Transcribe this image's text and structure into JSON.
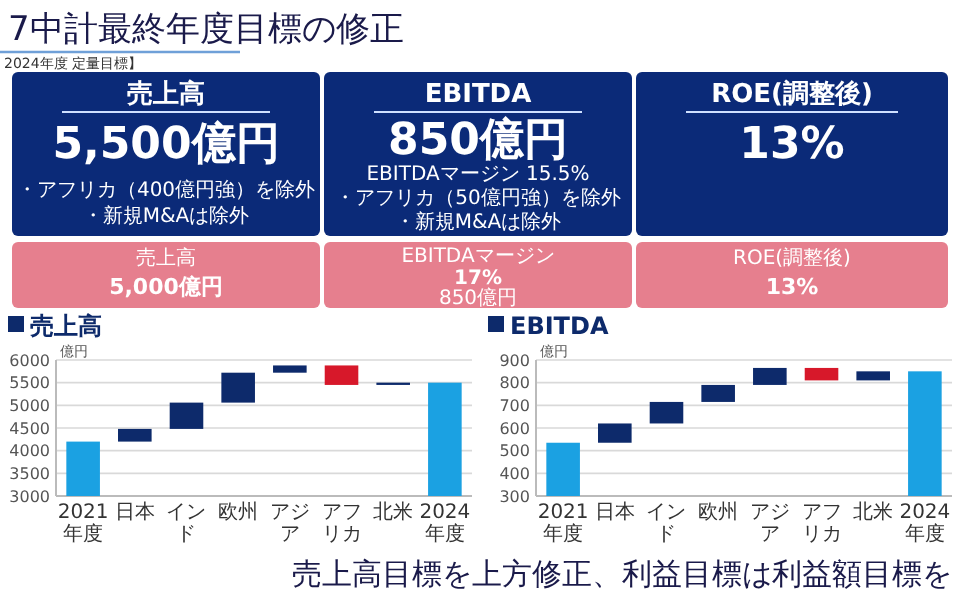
{
  "chart_data": [
    {
      "type": "other",
      "title": "7中計最終年度目標の修正",
      "subtitle": "2024年度 定量目標】",
      "annotations": [
        "売上高",
        "5,500億円",
        "・アフリカ（400億円強）を除外",
        "・新規M&Aは除外",
        "EBITDA",
        "850億円",
        "EBITDAマージン 15.5%",
        "・アフリカ（50億円強）を除外",
        "・新規M&Aは除外",
        "ROE(調整後)",
        "13%",
        "売上高",
        "5,000億円",
        "EBITDAマージン",
        "17%",
        "850億円",
        "ROE(調整後)",
        "13%",
        "売上高目標を上方修正、利益目標は利益額目標を"
      ]
    },
    {
      "type": "bar",
      "title": "売上高",
      "ylabel": "億円",
      "categories": [
        "2021年度",
        "日本",
        "インド",
        "欧州",
        "アジア",
        "アフリカ",
        "北米",
        "2024年度"
      ],
      "values": [
        4200,
        280,
        580,
        660,
        160,
        -430,
        50,
        5500
      ],
      "base": [
        null,
        4200,
        4480,
        5060,
        5720,
        5880,
        5450,
        null
      ],
      "colors": [
        "#1ba1e2",
        "#0d2a6b",
        "#0d2a6b",
        "#0d2a6b",
        "#0d2a6b",
        "#d7182a",
        "#0d2a6b",
        "#1ba1e2"
      ],
      "ylim": [
        3000,
        6000
      ],
      "yticks": [
        3000,
        3500,
        4000,
        4500,
        5000,
        5500,
        6000
      ],
      "grid": "y"
    },
    {
      "type": "bar",
      "title": "EBITDA",
      "ylabel": "億円",
      "categories": [
        "2021年度",
        "日本",
        "インド",
        "欧州",
        "アジア",
        "アフリカ",
        "北米",
        "2024年度"
      ],
      "values": [
        535,
        85,
        95,
        75,
        75,
        -55,
        40,
        850
      ],
      "base": [
        null,
        535,
        620,
        715,
        790,
        865,
        810,
        null
      ],
      "colors": [
        "#1ba1e2",
        "#0d2a6b",
        "#0d2a6b",
        "#0d2a6b",
        "#0d2a6b",
        "#d7182a",
        "#0d2a6b",
        "#1ba1e2"
      ],
      "ylim": [
        300,
        900
      ],
      "yticks": [
        300,
        400,
        500,
        600,
        700,
        800,
        900
      ],
      "grid": "y"
    }
  ]
}
